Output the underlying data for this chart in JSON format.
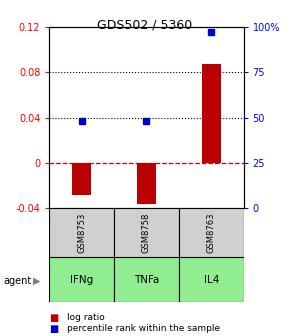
{
  "title": "GDS502 / 5360",
  "samples": [
    "GSM8753",
    "GSM8758",
    "GSM8763"
  ],
  "agents": [
    "IFNg",
    "TNFa",
    "IL4"
  ],
  "log_ratios": [
    -0.028,
    -0.036,
    0.087
  ],
  "percentile_ranks": [
    0.48,
    0.48,
    0.97
  ],
  "bar_color": "#bb0000",
  "dot_color": "#0000cc",
  "left_ylim": [
    -0.04,
    0.12
  ],
  "right_ylim": [
    0.0,
    1.0
  ],
  "left_yticks": [
    -0.04,
    0.0,
    0.04,
    0.08,
    0.12
  ],
  "right_yticks": [
    0.0,
    0.25,
    0.5,
    0.75,
    1.0
  ],
  "right_yticklabels": [
    "0",
    "25",
    "50",
    "75",
    "100%"
  ],
  "left_yticklabels": [
    "-0.04",
    "0",
    "0.04",
    "0.08",
    "0.12"
  ],
  "hline_dotted": [
    0.04,
    0.08
  ],
  "hline_dashed": 0.0,
  "sample_box_color": "#d0d0d0",
  "agent_box_color": "#90ee90",
  "bar_width": 0.3
}
